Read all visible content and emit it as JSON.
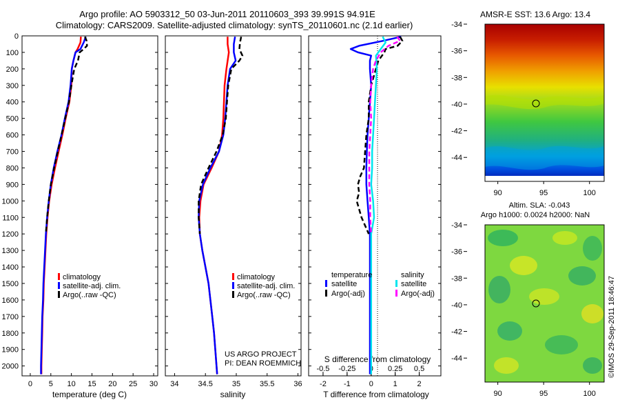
{
  "header": {
    "title_line1": "Argo profile: AO 5903312_50 03-Jun-2011 20110603_393 39.991S 94.91E",
    "title_line2": "Climatology: CARS2009. Satellite-adjusted climatology: synTS_20110601.nc (2.1d earlier)"
  },
  "colors": {
    "climatology": "#ff0000",
    "satellite": "#0000ff",
    "argo": "#000000",
    "sal_satellite": "#00e5ee",
    "sal_argo": "#ff00ff"
  },
  "depth_ticks": [
    "0",
    "100",
    "200",
    "300",
    "400",
    "500",
    "600",
    "700",
    "800",
    "900",
    "1000",
    "1100",
    "1200",
    "1300",
    "1400",
    "1500",
    "1600",
    "1700",
    "1800",
    "1900",
    "2000"
  ],
  "panels": {
    "temperature": {
      "xlabel": "temperature (deg C)",
      "xticks": [
        "0",
        "5",
        "10",
        "15",
        "20",
        "25",
        "30"
      ],
      "legend": [
        "climatology",
        "satellite-adj. clim.",
        "Argo(..raw -QC)"
      ]
    },
    "salinity": {
      "xlabel": "salinity",
      "xticks": [
        "34",
        "34.5",
        "35",
        "35.5",
        "36"
      ],
      "legend": [
        "climatology",
        "satellite-adj. clim.",
        "Argo(..raw -QC)"
      ],
      "credit_line1": "US ARGO PROJECT",
      "credit_line2": "PI: DEAN ROEMMICH"
    },
    "difference": {
      "xlabel": "T difference from climatology",
      "xticks": [
        "-2",
        "-1",
        "0",
        "1",
        "2"
      ],
      "top_label": "S difference from climatology",
      "top_ticks": [
        "-0.5",
        "-0.25",
        "0",
        "0.25",
        "0.5"
      ],
      "legend_temp_title": "temperature",
      "legend_sal_title": "salinity",
      "legend_temp": [
        "satellite",
        "Argo(-adj)"
      ],
      "legend_sal": [
        "satellite",
        "Argo(-adj)"
      ]
    },
    "map_sst": {
      "title": "AMSR-E SST: 13.6 Argo: 13.4",
      "yticks": [
        "-34",
        "-36",
        "-38",
        "-40",
        "-42",
        "-44"
      ],
      "xticks": [
        "90",
        "95",
        "100"
      ]
    },
    "map_sla": {
      "title_line1": "Altim. SLA: -0.043",
      "title_line2": "Argo h1000: 0.0024 h2000: NaN",
      "yticks": [
        "-34",
        "-36",
        "-38",
        "-40",
        "-42",
        "-44"
      ],
      "xticks": [
        "90",
        "95",
        "100"
      ]
    }
  },
  "watermark": "©IMOS 29-Sep-2011 18:46:47",
  "chart_data": [
    {
      "type": "line",
      "panel": "temperature",
      "xlabel": "temperature (deg C)",
      "ylabel": "",
      "xlim": [
        -2,
        31
      ],
      "ylim": [
        2060,
        0
      ],
      "grid": false,
      "legend": "bottom-center",
      "series": [
        {
          "name": "climatology",
          "color": "#ff0000",
          "depth": [
            5,
            40,
            80,
            100,
            150,
            200,
            300,
            400,
            500,
            600,
            700,
            800,
            900,
            1000,
            1100,
            1200,
            1300,
            1400,
            1500,
            1600,
            1700,
            1800,
            1900,
            2000,
            2050
          ],
          "values": [
            12.3,
            12.2,
            11.5,
            11.0,
            10.5,
            10.1,
            10.0,
            9.5,
            8.6,
            7.8,
            6.9,
            6.0,
            5.2,
            4.6,
            4.2,
            3.9,
            3.7,
            3.5,
            3.3,
            3.2,
            3.0,
            2.9,
            2.8,
            2.7,
            2.7
          ]
        },
        {
          "name": "satellite-adj. clim.",
          "color": "#0000ff",
          "depth": [
            5,
            40,
            80,
            100,
            150,
            200,
            300,
            400,
            500,
            600,
            700,
            800,
            900,
            1000,
            1100,
            1200,
            1300,
            1400,
            1500,
            1600,
            1700,
            1800,
            1900,
            2000,
            2050
          ],
          "values": [
            13.5,
            13.0,
            12.2,
            11.0,
            10.5,
            10.1,
            9.8,
            9.3,
            8.4,
            7.6,
            6.6,
            5.7,
            5.0,
            4.5,
            4.1,
            3.8,
            3.6,
            3.4,
            3.2,
            3.1,
            2.9,
            2.8,
            2.7,
            2.6,
            2.6
          ]
        },
        {
          "name": "Argo(..raw -QC)",
          "color": "#000000",
          "depth": [
            5,
            30,
            60,
            80,
            100,
            150,
            200,
            300,
            400,
            500,
            600,
            700,
            800,
            900,
            1000,
            1100,
            1200
          ],
          "values": [
            13.3,
            13.7,
            13.8,
            13.0,
            12.0,
            11.6,
            10.7,
            10.0,
            9.4,
            8.5,
            7.6,
            6.7,
            5.8,
            5.0,
            4.5,
            4.1,
            3.8
          ]
        }
      ]
    },
    {
      "type": "line",
      "panel": "salinity",
      "xlabel": "salinity",
      "ylabel": "",
      "xlim": [
        33.85,
        36.05
      ],
      "ylim": [
        2060,
        0
      ],
      "grid": false,
      "legend": "bottom-center",
      "series": [
        {
          "name": "climatology",
          "color": "#ff0000",
          "depth": [
            5,
            50,
            100,
            200,
            300,
            400,
            500,
            600,
            700,
            800,
            900,
            1000,
            1100,
            1200,
            1300,
            1400,
            1500,
            1600,
            1700,
            1800,
            1900,
            2000,
            2050
          ],
          "values": [
            34.86,
            34.86,
            34.88,
            34.84,
            34.81,
            34.8,
            34.79,
            34.77,
            34.72,
            34.6,
            34.47,
            34.42,
            34.4,
            34.41,
            34.45,
            34.5,
            34.55,
            34.58,
            34.61,
            34.64,
            34.66,
            34.68,
            34.69
          ]
        },
        {
          "name": "satellite-adj. clim.",
          "color": "#0000ff",
          "depth": [
            5,
            50,
            100,
            150,
            200,
            300,
            400,
            500,
            600,
            700,
            800,
            900,
            1000,
            1100,
            1200,
            1300,
            1400,
            1500,
            1600,
            1700,
            1800,
            1900,
            2000,
            2050
          ],
          "values": [
            34.98,
            34.96,
            34.96,
            34.99,
            34.9,
            34.86,
            34.84,
            34.82,
            34.79,
            34.72,
            34.58,
            34.46,
            34.4,
            34.39,
            34.41,
            34.45,
            34.5,
            34.55,
            34.58,
            34.61,
            34.64,
            34.66,
            34.68,
            34.69
          ]
        },
        {
          "name": "Argo(..raw -QC)",
          "color": "#000000",
          "depth": [
            5,
            40,
            80,
            120,
            150,
            200,
            300,
            400,
            500,
            600,
            700,
            800,
            900,
            1000,
            1100,
            1200
          ],
          "values": [
            35.08,
            35.06,
            35.05,
            35.1,
            35.05,
            34.92,
            34.87,
            34.85,
            34.83,
            34.78,
            34.68,
            34.55,
            34.43,
            34.39,
            34.39,
            34.41
          ]
        }
      ]
    },
    {
      "type": "line",
      "panel": "difference",
      "xlabel": "T difference from climatology",
      "ylabel": "",
      "xlim": [
        -2.6,
        2.9
      ],
      "ylim": [
        2060,
        0
      ],
      "grid": false,
      "legend": "bottom-center",
      "series": [
        {
          "name": "satellite (temperature)",
          "color": "#0000ff",
          "depth": [
            5,
            30,
            60,
            80,
            100,
            120,
            150,
            200,
            300,
            400,
            500,
            600,
            700,
            800,
            900,
            1000,
            1100,
            1200,
            1400,
            1600,
            1800,
            2000,
            2050
          ],
          "values": [
            1.25,
            0.5,
            -0.5,
            -0.85,
            -0.55,
            0.0,
            -0.05,
            -0.05,
            0.0,
            -0.05,
            -0.1,
            -0.15,
            -0.18,
            -0.2,
            -0.2,
            -0.15,
            -0.1,
            -0.05,
            -0.05,
            -0.05,
            -0.05,
            -0.05,
            -0.05
          ]
        },
        {
          "name": "Argo(-adj) (temperature)",
          "color": "#000000",
          "depth": [
            5,
            30,
            60,
            80,
            100,
            150,
            200,
            300,
            400,
            500,
            600,
            700,
            800,
            850,
            900,
            950,
            1000,
            1050,
            1100,
            1200
          ],
          "values": [
            1.2,
            1.3,
            1.1,
            0.6,
            0.55,
            0.3,
            0.2,
            0.0,
            -0.1,
            -0.1,
            -0.2,
            -0.25,
            -0.3,
            -0.45,
            -0.55,
            -0.5,
            -0.6,
            -0.5,
            -0.4,
            -0.1
          ]
        }
      ]
    },
    {
      "type": "line",
      "panel": "difference (salinity, top axis)",
      "xlabel": "S difference from climatology",
      "ylabel": "",
      "xlim": [
        -0.65,
        0.725
      ],
      "ylim": [
        2060,
        0
      ],
      "grid": false,
      "legend": "bottom-center",
      "series": [
        {
          "name": "satellite (salinity)",
          "color": "#00e5ee",
          "depth": [
            5,
            40,
            80,
            120,
            200,
            300,
            400,
            500,
            600,
            700,
            800,
            900,
            1000,
            1100,
            1200,
            1400,
            1600,
            1800,
            2000,
            2050
          ],
          "values": [
            0.12,
            0.15,
            0.1,
            0.05,
            0.06,
            0.05,
            0.04,
            0.03,
            0.02,
            0.01,
            0.01,
            0.0,
            0.02,
            0.03,
            0.0,
            0.0,
            0.0,
            0.0,
            0.0,
            0.0
          ]
        },
        {
          "name": "Argo(-adj) (salinity)",
          "color": "#ff00ff",
          "depth": [
            5,
            30,
            60,
            100,
            150,
            200,
            300,
            400,
            500,
            600,
            700,
            800,
            900,
            1000,
            1100,
            1200
          ],
          "values": [
            0.27,
            0.3,
            0.18,
            0.1,
            0.05,
            0.02,
            0.0,
            -0.01,
            0.0,
            -0.01,
            -0.02,
            -0.02,
            -0.02,
            -0.01,
            -0.01,
            0.0
          ]
        }
      ]
    }
  ]
}
